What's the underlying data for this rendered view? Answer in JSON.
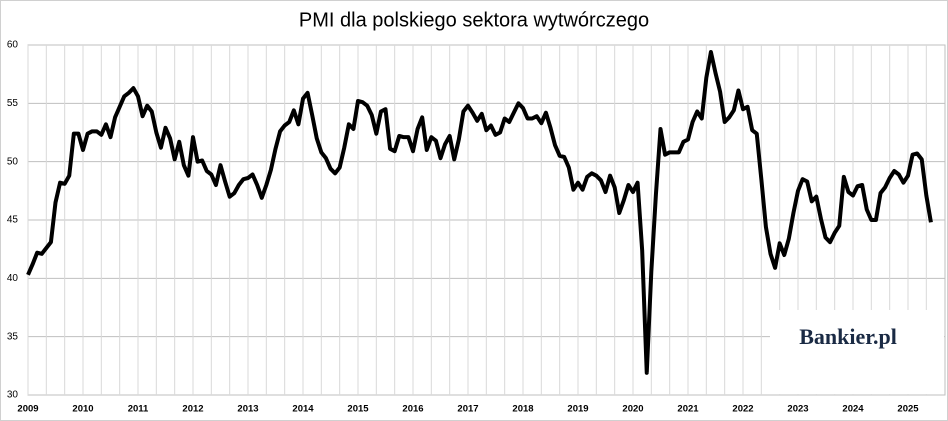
{
  "chart_data": {
    "type": "line",
    "title": "PMI dla polskiego sektora wytwórczego",
    "categories": [
      "2009",
      null,
      null,
      null,
      null,
      null,
      null,
      null,
      null,
      null,
      null,
      null,
      "2010",
      null,
      null,
      null,
      null,
      null,
      null,
      null,
      null,
      null,
      null,
      null,
      "2011",
      null,
      null,
      null,
      null,
      null,
      null,
      null,
      null,
      null,
      null,
      null,
      "2012",
      null,
      null,
      null,
      null,
      null,
      null,
      null,
      null,
      null,
      null,
      null,
      "2013",
      null,
      null,
      null,
      null,
      null,
      null,
      null,
      null,
      null,
      null,
      null,
      "2014",
      null,
      null,
      null,
      null,
      null,
      null,
      null,
      null,
      null,
      null,
      null,
      "2015",
      null,
      null,
      null,
      null,
      null,
      null,
      null,
      null,
      null,
      null,
      null,
      "2016",
      null,
      null,
      null,
      null,
      null,
      null,
      null,
      null,
      null,
      null,
      null,
      "2017",
      null,
      null,
      null,
      null,
      null,
      null,
      null,
      null,
      null,
      null,
      null,
      "2018",
      null,
      null,
      null,
      null,
      null,
      null,
      null,
      null,
      null,
      null,
      null,
      "2019",
      null,
      null,
      null,
      null,
      null,
      null,
      null,
      null,
      null,
      null,
      null,
      "2020",
      null,
      null,
      null,
      null,
      null,
      null,
      null,
      null,
      null,
      null,
      null,
      "2021",
      null,
      null,
      null,
      null,
      null,
      null,
      null,
      null,
      null,
      null,
      null,
      "2022",
      null,
      null,
      null,
      null,
      null,
      null,
      null,
      null,
      null,
      null,
      null,
      "2023",
      null,
      null,
      null,
      null,
      null,
      null,
      null,
      null,
      null,
      null,
      null,
      "2024",
      null,
      null,
      null,
      null,
      null,
      null,
      null,
      null,
      null,
      null,
      null,
      "2025",
      null,
      null,
      null,
      null,
      null
    ],
    "values": [
      40.3,
      41.2,
      42.2,
      42.1,
      42.6,
      43.1,
      46.5,
      48.2,
      48.1,
      48.8,
      52.4,
      52.4,
      51.0,
      52.4,
      52.6,
      52.6,
      52.3,
      53.2,
      52.1,
      53.8,
      54.7,
      55.6,
      55.9,
      56.3,
      55.6,
      53.9,
      54.8,
      54.3,
      52.5,
      51.2,
      52.9,
      52.0,
      50.2,
      51.7,
      49.7,
      48.8,
      52.1,
      50.0,
      50.1,
      49.2,
      48.9,
      48.0,
      49.7,
      48.3,
      47.0,
      47.3,
      48.0,
      48.5,
      48.6,
      48.9,
      48.0,
      46.9,
      48.0,
      49.3,
      51.1,
      52.6,
      53.1,
      53.4,
      54.4,
      53.2,
      55.4,
      55.9,
      54.0,
      52.0,
      50.8,
      50.3,
      49.4,
      49.0,
      49.5,
      51.2,
      53.2,
      52.8,
      55.2,
      55.1,
      54.8,
      54.0,
      52.4,
      54.3,
      54.5,
      51.1,
      50.9,
      52.2,
      52.1,
      52.1,
      50.9,
      52.8,
      53.8,
      51.0,
      52.1,
      51.8,
      50.3,
      51.5,
      52.2,
      50.2,
      51.9,
      54.3,
      54.8,
      54.2,
      53.5,
      54.1,
      52.7,
      53.1,
      52.3,
      52.5,
      53.7,
      53.4,
      54.2,
      55.0,
      54.6,
      53.7,
      53.7,
      53.9,
      53.3,
      54.2,
      52.9,
      51.4,
      50.5,
      50.4,
      49.5,
      47.6,
      48.2,
      47.6,
      48.7,
      49.0,
      48.8,
      48.4,
      47.4,
      48.8,
      47.8,
      45.6,
      46.7,
      48.0,
      47.4,
      48.2,
      42.4,
      31.9,
      40.6,
      47.2,
      52.8,
      50.6,
      50.8,
      50.8,
      50.8,
      51.7,
      51.9,
      53.4,
      54.3,
      53.7,
      57.2,
      59.4,
      57.6,
      56.0,
      53.4,
      53.8,
      54.4,
      56.1,
      54.5,
      54.7,
      52.7,
      52.4,
      48.5,
      44.4,
      42.1,
      40.9,
      43.0,
      42.0,
      43.4,
      45.6,
      47.5,
      48.5,
      48.3,
      46.6,
      47.0,
      45.1,
      43.5,
      43.1,
      43.9,
      44.5,
      48.7,
      47.4,
      47.1,
      47.9,
      48.0,
      45.9,
      45.0,
      45.0,
      47.3,
      47.8,
      48.6,
      49.2,
      48.9,
      48.2,
      48.8,
      50.6,
      50.7,
      50.2,
      47.1,
      44.8
    ],
    "color": "#000000",
    "ylim": [
      30,
      60
    ],
    "yticks": [
      30,
      35,
      40,
      45,
      50,
      55,
      60
    ],
    "grid": true,
    "logo": "Bankier.pl"
  }
}
